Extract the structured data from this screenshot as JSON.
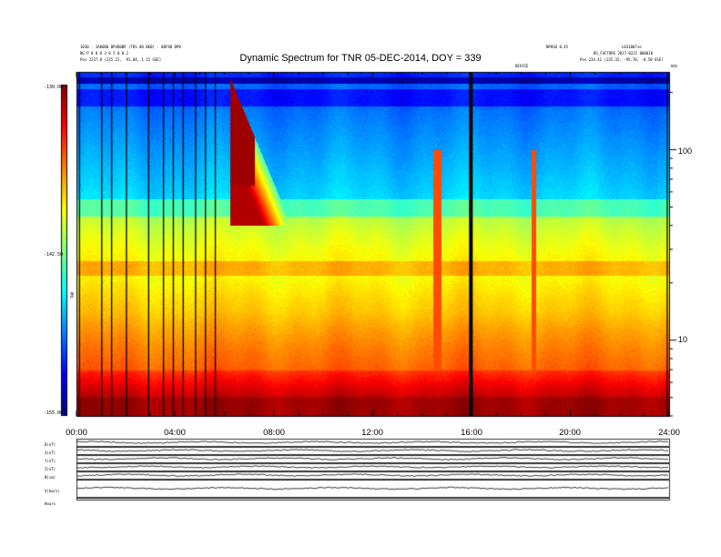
{
  "header": {
    "left_line1": "1030 - 3A80D0 BP4D0BP (TDS 80 BK0) - 80F80 BP0",
    "left_line2": "NG P 8 8 0 3 8 5 0 0 2",
    "left_line3": "Pos   2237.0 (235.15, -91.84, 1.15 GSE)",
    "right_line1": "NPOSD 0.45",
    "right_line1b": "L031007+e",
    "right_line2": "BS_FACTORS 2017-0215 000010",
    "right_line3": "Pos   234.41 (235.35, -95.70, -0.50 GSE)",
    "ofs_label": "DEVICE",
    "corner": "kHz"
  },
  "title": "Dynamic Spectrum for TNR 05-DEC-2014, DOY = 339",
  "colorbar": {
    "label": "TNR",
    "ticks": [
      "-130.00",
      "-142.50",
      "-155.00"
    ]
  },
  "panel_labels": [
    "B(nT)",
    "X(nT)",
    "Y(nT)",
    "Z(nT)",
    "N(cm)",
    "V(km/s)"
  ],
  "bottom_label": "Hours",
  "colors": {
    "bar": [
      "#00007f",
      "#0000ff",
      "#007fff",
      "#00ffff",
      "#7fff7f",
      "#ffff00",
      "#ff7f00",
      "#ff0000",
      "#7f0000"
    ]
  },
  "chart_data": {
    "type": "heatmap",
    "title": "Dynamic Spectrum for TNR 05-DEC-2014, DOY = 339",
    "x": {
      "label": "",
      "range_hours": [
        0,
        24
      ],
      "ticks": [
        "00:00",
        "04:00",
        "08:00",
        "12:00",
        "16:00",
        "20:00",
        "24:00"
      ]
    },
    "y": {
      "label": "",
      "scale": "log",
      "unit": "kHz",
      "range": [
        4,
        256
      ],
      "ticks": [
        10,
        100
      ],
      "tick_labels": [
        "10",
        "100"
      ]
    },
    "colorscale": {
      "label": "TNR",
      "range": [
        -155.0,
        -130.0
      ],
      "ticks": [
        -130.0,
        -142.5,
        -155.0
      ]
    },
    "features": {
      "vertical_dropouts_hours": [
        0.1,
        1.0,
        1.4,
        2.0,
        2.9,
        3.5,
        3.9,
        4.3,
        4.8,
        5.2,
        5.6,
        15.9,
        23.9
      ],
      "radio_burst_start_hours": 6.2,
      "radio_burst_end_hours": 8.7
    }
  }
}
